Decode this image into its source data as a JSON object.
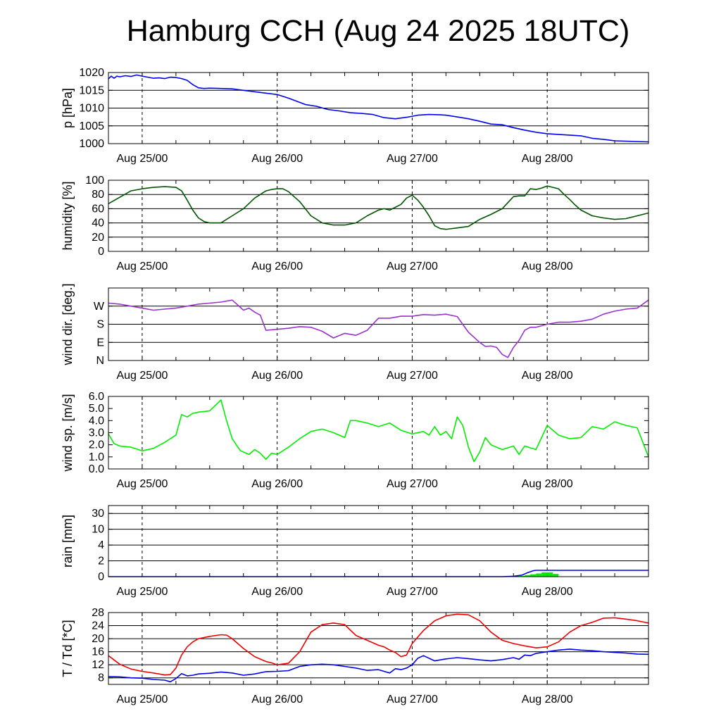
{
  "title": "Hamburg CCH (Aug 24 2025 18UTC)",
  "chart_data": [
    {
      "type": "line",
      "ylabel": "p [hPa]",
      "ylim": [
        1000,
        1020
      ],
      "yticks": [
        1000,
        1005,
        1010,
        1015,
        1020
      ],
      "xlabels": [
        "Aug 25/00",
        "Aug 26/00",
        "Aug 27/00",
        "Aug 28/00"
      ],
      "xlim_hours": [
        0,
        96
      ],
      "grid": "horizontal at ticks, dashed vertical at midnight",
      "series": [
        {
          "color": "#0000ee",
          "x": [
            0,
            0.5,
            1,
            1.5,
            2,
            3,
            4,
            5,
            6,
            7,
            8,
            9,
            10,
            11,
            12,
            13,
            14,
            15,
            16,
            17,
            18,
            20,
            22,
            24,
            26,
            28,
            30,
            32,
            33,
            35,
            37,
            39,
            41,
            43,
            45,
            47,
            49,
            51,
            53,
            55,
            57,
            59,
            60,
            62,
            64,
            66,
            68,
            70,
            72,
            74,
            76,
            78,
            80,
            81,
            82,
            84,
            86,
            88,
            89,
            90,
            92,
            94,
            96
          ],
          "y": [
            1018.2,
            1019,
            1018.4,
            1019,
            1018.8,
            1019.1,
            1018.9,
            1019.3,
            1019,
            1018.7,
            1018.4,
            1018.5,
            1018.3,
            1018.7,
            1018.6,
            1018.3,
            1017.8,
            1016.6,
            1015.7,
            1015.5,
            1015.6,
            1015.5,
            1015.4,
            1015,
            1014.6,
            1014.2,
            1013.8,
            1012.8,
            1012.2,
            1011,
            1010.5,
            1009.6,
            1009.2,
            1008.7,
            1008.5,
            1008.2,
            1007.3,
            1007,
            1007.4,
            1008,
            1008.2,
            1008.1,
            1008,
            1007.5,
            1007,
            1006.3,
            1005.5,
            1005.3,
            1004.5,
            1003.8,
            1003.2,
            1002.8,
            1002.6,
            1002.5,
            1002.4,
            1002.2,
            1001.5,
            1001.2,
            1001,
            1000.8,
            1000.7,
            1000.6,
            1000.5
          ]
        }
      ]
    },
    {
      "type": "line",
      "ylabel": "humidity [%]",
      "ylim": [
        0,
        100
      ],
      "yticks": [
        0,
        20,
        40,
        60,
        80,
        100
      ],
      "xlabels": [
        "Aug 25/00",
        "Aug 26/00",
        "Aug 27/00",
        "Aug 28/00"
      ],
      "xlim_hours": [
        0,
        96
      ],
      "grid": "horizontal at ticks, dashed vertical at midnight",
      "series": [
        {
          "color": "#005500",
          "x": [
            0,
            2,
            4,
            6,
            8,
            10,
            12,
            13,
            14,
            15,
            16,
            17,
            18,
            19,
            20,
            22,
            24,
            26,
            28,
            29,
            30,
            31,
            32,
            34,
            36,
            38,
            40,
            42,
            44,
            46,
            48,
            49,
            50,
            51,
            52,
            53,
            54,
            55,
            56,
            57,
            58,
            59,
            60,
            62,
            64,
            66,
            68,
            70,
            72,
            73,
            74,
            75,
            76,
            77,
            78,
            79,
            80,
            81,
            82,
            83,
            84,
            86,
            88,
            90,
            92,
            94,
            96
          ],
          "y": [
            67,
            76,
            85,
            88,
            90,
            91,
            90,
            85,
            72,
            58,
            47,
            42,
            40,
            40,
            40,
            50,
            60,
            75,
            85,
            87,
            88,
            88,
            84,
            70,
            50,
            40,
            37,
            37,
            40,
            50,
            58,
            60,
            58,
            62,
            66,
            75,
            79,
            72,
            62,
            50,
            36,
            32,
            31,
            33,
            35,
            45,
            52,
            60,
            77,
            78,
            78,
            88,
            87,
            89,
            92,
            90,
            88,
            80,
            73,
            65,
            58,
            50,
            47,
            45,
            46,
            50,
            54
          ]
        }
      ]
    },
    {
      "type": "line",
      "ylabel": "wind dir. [deg.]",
      "ylim": [
        0,
        360
      ],
      "yticks": [
        0,
        90,
        180,
        270
      ],
      "yticklabels": [
        "N",
        "E",
        "S",
        "W"
      ],
      "xlabels": [
        "Aug 25/00",
        "Aug 26/00",
        "Aug 27/00",
        "Aug 28/00"
      ],
      "xlim_hours": [
        0,
        96
      ],
      "grid": "horizontal at ticks, dashed vertical at midnight",
      "series": [
        {
          "color": "#9933cc",
          "x": [
            0,
            2,
            4,
            6,
            8,
            10,
            12,
            14,
            16,
            18,
            20,
            22,
            24,
            25,
            26,
            27,
            28,
            30,
            32,
            34,
            36,
            38,
            40,
            42,
            44,
            46,
            48,
            50,
            52,
            54,
            56,
            58,
            60,
            62,
            64,
            66,
            67,
            68,
            69,
            70,
            71,
            72,
            73,
            74,
            75,
            76,
            78,
            80,
            82,
            84,
            86,
            88,
            90,
            92,
            94,
            96
          ],
          "y": [
            285,
            280,
            270,
            260,
            250,
            255,
            260,
            270,
            280,
            285,
            290,
            300,
            250,
            260,
            240,
            225,
            150,
            155,
            160,
            168,
            165,
            145,
            112,
            135,
            125,
            150,
            210,
            210,
            220,
            220,
            228,
            225,
            230,
            218,
            140,
            90,
            70,
            72,
            65,
            30,
            15,
            65,
            100,
            150,
            165,
            165,
            180,
            190,
            190,
            195,
            205,
            230,
            245,
            255,
            260,
            300
          ]
        }
      ]
    },
    {
      "type": "line",
      "ylabel": "wind sp. [m/s]",
      "ylim": [
        0,
        6
      ],
      "yticks": [
        0,
        1,
        2,
        3,
        4,
        5,
        6
      ],
      "yticklabels": [
        "0.0",
        "1.0",
        "2.0",
        "3.0",
        "4.0",
        "5.0",
        "6.0"
      ],
      "xlabels": [
        "Aug 25/00",
        "Aug 26/00",
        "Aug 27/00",
        "Aug 28/00"
      ],
      "xlim_hours": [
        0,
        96
      ],
      "grid": "dashed vertical at midnight",
      "series": [
        {
          "color": "#00ee00",
          "x": [
            0,
            1,
            2,
            4,
            6,
            8,
            10,
            12,
            13,
            14,
            15,
            16,
            18,
            20,
            21,
            22,
            23,
            23.5,
            24,
            25,
            26,
            27,
            28,
            29,
            30,
            32,
            34,
            36,
            38,
            40,
            42,
            43,
            44,
            46,
            48,
            50,
            52,
            54,
            56,
            57,
            58,
            59,
            60,
            61,
            62,
            63,
            64,
            65,
            66,
            67,
            68,
            70,
            72,
            73,
            74,
            76,
            78,
            80,
            82,
            84,
            86,
            88,
            90,
            92,
            94,
            95,
            96
          ],
          "y": [
            2.9,
            2.1,
            1.9,
            1.8,
            1.5,
            1.7,
            2.2,
            2.8,
            4.5,
            4.3,
            4.6,
            4.7,
            4.8,
            5.7,
            4,
            2.5,
            1.8,
            1.5,
            1.4,
            1.2,
            1.6,
            1.3,
            0.8,
            1.3,
            1.2,
            1.8,
            2.5,
            3.1,
            3.3,
            3,
            2.6,
            4,
            4,
            3.8,
            3.5,
            3.8,
            3.2,
            2.9,
            3.1,
            2.8,
            3.5,
            2.8,
            3.1,
            2.5,
            4.3,
            3.6,
            1.8,
            0.6,
            1.4,
            2.6,
            2,
            1.6,
            1.9,
            1.2,
            1.9,
            1.6,
            3.6,
            2.8,
            2.5,
            2.6,
            3.5,
            3.3,
            3.9,
            3.6,
            3.4,
            2.2,
            1
          ]
        }
      ]
    },
    {
      "type": "area",
      "ylabel": "rain [mm]",
      "yticks": [
        0,
        2,
        4,
        10,
        30
      ],
      "scale": "nonlinear (0, 2, 4, 10, 30 equally spaced above 2)",
      "xlabels": [
        "Aug 25/00",
        "Aug 26/00",
        "Aug 27/00",
        "Aug 28/00"
      ],
      "xlim_hours": [
        0,
        96
      ],
      "grid": "horizontal at ticks, dashed vertical at midnight",
      "series": [
        {
          "name": "",
          "color": "#0000ee",
          "kind": "line",
          "x": [
            0,
            70,
            72,
            73.5,
            74.5,
            75.5,
            76,
            79,
            96
          ],
          "y": [
            0,
            0,
            0.05,
            0.2,
            0.5,
            0.75,
            0.8,
            0.8,
            0.8
          ]
        },
        {
          "name": "",
          "color": "#00ee00",
          "kind": "bars",
          "x": [
            72,
            73,
            74,
            75,
            76,
            77,
            78,
            79
          ],
          "y": [
            0.05,
            0.1,
            0.2,
            0.3,
            0.4,
            0.55,
            0.55,
            0.35
          ]
        }
      ]
    },
    {
      "type": "line",
      "ylabel": "T / Td [*C]",
      "ylim": [
        6,
        28
      ],
      "yticks": [
        8,
        12,
        16,
        20,
        24,
        28
      ],
      "xlabels": [
        "Aug 25/00",
        "Aug 26/00",
        "Aug 27/00",
        "Aug 28/00"
      ],
      "xlim_hours": [
        0,
        96
      ],
      "grid": "horizontal at ticks, dashed vertical at midnight",
      "series": [
        {
          "color": "#ee0000",
          "x": [
            0,
            2,
            4,
            6,
            8,
            10,
            11,
            12,
            13,
            14,
            15,
            16,
            18,
            20,
            21,
            22,
            24,
            26,
            28,
            29,
            30,
            32,
            34,
            36,
            38,
            40,
            42,
            44,
            46,
            48,
            49,
            50,
            51,
            52,
            53,
            54,
            56,
            58,
            60,
            62,
            64,
            66,
            68,
            70,
            72,
            74,
            76,
            78,
            80,
            82,
            84,
            86,
            88,
            90,
            92,
            94,
            96
          ],
          "y": [
            14.8,
            12.2,
            10.7,
            10,
            9.5,
            8.9,
            9,
            11,
            15,
            17.5,
            19,
            20,
            20.7,
            21.2,
            21.1,
            20,
            17,
            14.5,
            13,
            12.6,
            12,
            12.5,
            16,
            22,
            24.3,
            24.8,
            24.3,
            21,
            19.5,
            18,
            17.5,
            16.5,
            15.8,
            14.5,
            15,
            18.5,
            22.5,
            25.5,
            27,
            27.5,
            27.3,
            25.5,
            22,
            19.5,
            18.5,
            17.8,
            17.2,
            17.5,
            19,
            22,
            24,
            25,
            26.3,
            26.4,
            26,
            25.5,
            24.8
          ]
        },
        {
          "color": "#0000ee",
          "x": [
            0,
            2,
            4,
            6,
            8,
            10,
            11,
            12,
            13,
            14,
            15,
            16,
            18,
            20,
            22,
            24,
            26,
            28,
            30,
            32,
            34,
            36,
            38,
            40,
            42,
            44,
            46,
            48,
            49,
            50,
            51,
            52,
            53,
            54,
            55,
            56,
            58,
            60,
            62,
            64,
            66,
            68,
            70,
            72,
            73,
            74,
            75,
            76,
            78,
            80,
            82,
            84,
            86,
            88,
            90,
            92,
            94,
            96
          ],
          "y": [
            8.4,
            8.3,
            8,
            7.9,
            7.5,
            7.3,
            6.8,
            7.8,
            9.3,
            8.6,
            8.8,
            9.2,
            9.4,
            9.8,
            9.5,
            8.8,
            9.2,
            9.9,
            10,
            10.2,
            11.5,
            12,
            12.2,
            12,
            11.5,
            11,
            10.3,
            10.5,
            10,
            9.5,
            10.8,
            10.5,
            11,
            12,
            14,
            14.8,
            13.2,
            13.8,
            14.2,
            13.9,
            13.5,
            13.2,
            13.6,
            14.2,
            13.7,
            15,
            14.8,
            15.5,
            16,
            16.5,
            16.8,
            16.5,
            16.3,
            16,
            15.8,
            15.6,
            15.3,
            15.2
          ]
        }
      ]
    }
  ]
}
